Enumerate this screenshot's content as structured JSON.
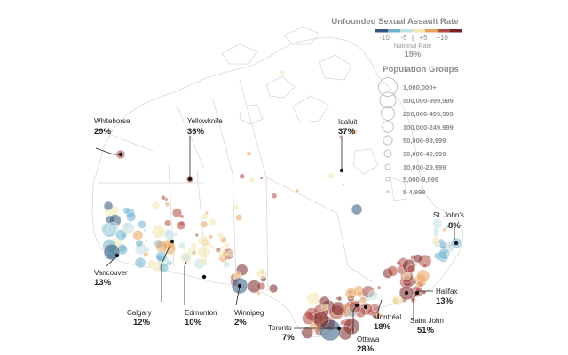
{
  "colors": {
    "scale": [
      "#33577e",
      "#6fb2cf",
      "#bfe0e6",
      "#f3e7b3",
      "#e9a25c",
      "#b04b43",
      "#7a2424"
    ],
    "outline": "#dcdcdc",
    "leader": "#222222"
  },
  "legend": {
    "rate_title": "Unfounded Sexual Assault Rate",
    "ticks": [
      "-10",
      "-5",
      "|",
      "+5",
      "+10"
    ],
    "national_label": "National Rate",
    "national_value": "19%",
    "pop_title": "Population Groups",
    "pop_groups": [
      "1,000,000+",
      "500,000-999,999",
      "250,000-499,999",
      "100,000-249,999",
      "50,000-99,999",
      "30,000-49,999",
      "10,000-29,999",
      "5,000-9,999",
      "5-4,999"
    ]
  },
  "cities": [
    {
      "name": "Whitehorse",
      "rate": "29%"
    },
    {
      "name": "Yellowknife",
      "rate": "36%"
    },
    {
      "name": "Iqaluit",
      "rate": "37%"
    },
    {
      "name": "St. John's",
      "rate": "8%"
    },
    {
      "name": "Vancouver",
      "rate": "13%"
    },
    {
      "name": "Calgary",
      "rate": "12%"
    },
    {
      "name": "Edmonton",
      "rate": "10%"
    },
    {
      "name": "Winnipeg",
      "rate": "2%"
    },
    {
      "name": "Toronto",
      "rate": "7%"
    },
    {
      "name": "Ottawa",
      "rate": "28%"
    },
    {
      "name": "Montréal",
      "rate": "18%"
    },
    {
      "name": "Saint John",
      "rate": "51%"
    },
    {
      "name": "Halifax",
      "rate": "13%"
    }
  ]
}
